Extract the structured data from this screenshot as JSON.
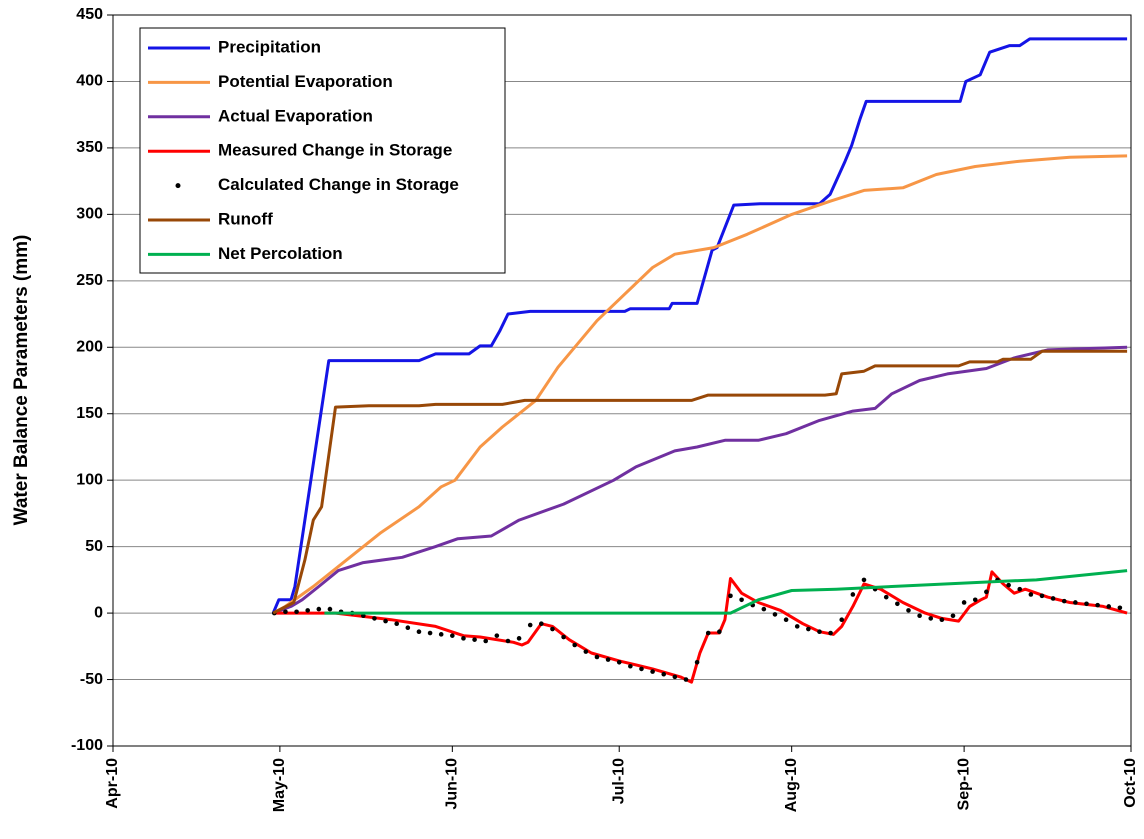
{
  "chart_data": {
    "type": "line",
    "y_label": "Water Balance Parameters (mm)",
    "xlim": [
      0,
      183
    ],
    "xticks": [
      {
        "value": 0,
        "label": "Apr-10"
      },
      {
        "value": 30,
        "label": "May-10"
      },
      {
        "value": 61,
        "label": "Jun-10"
      },
      {
        "value": 91,
        "label": "Jul-10"
      },
      {
        "value": 122,
        "label": "Aug-10"
      },
      {
        "value": 153,
        "label": "Sep-10"
      },
      {
        "value": 183,
        "label": "Oct-10"
      }
    ],
    "ylim": [
      -100,
      450
    ],
    "yticks": [
      -100,
      -50,
      0,
      50,
      100,
      150,
      200,
      250,
      300,
      350,
      400,
      450
    ],
    "grid": true,
    "legend": "upper-left",
    "series": [
      {
        "name": "Precipitation",
        "color": "#1414e6",
        "mode": "line",
        "x": [
          28.8,
          29.8,
          32,
          32.7,
          38.8,
          55,
          58,
          64,
          66,
          68,
          69.5,
          71,
          75,
          92,
          93,
          100,
          100.5,
          105,
          107.7,
          108.6,
          111.6,
          116.3,
          127,
          128.9,
          131.6,
          132.8,
          134.3,
          135.4,
          152.3,
          153.3,
          155.9,
          157.6,
          161.2,
          163,
          164.8,
          182.3
        ],
        "values": [
          0,
          10,
          10,
          20,
          190,
          190,
          195,
          195,
          201,
          201,
          212,
          225,
          227,
          227,
          229,
          229,
          233,
          233,
          273,
          275,
          307,
          308,
          308,
          315,
          340,
          352,
          372,
          385,
          385,
          400,
          405,
          422,
          427,
          427,
          432,
          432
        ]
      },
      {
        "name": "Potential Evaporation",
        "color": "#f79646",
        "mode": "line",
        "x": [
          28.8,
          31,
          36,
          40.5,
          48,
          55,
          59,
          61.5,
          66,
          70,
          76,
          80,
          87,
          92,
          97,
          101,
          108,
          114,
          122,
          129,
          135,
          142,
          148,
          155,
          163,
          172,
          182.3
        ],
        "values": [
          0,
          5,
          20,
          35,
          60,
          80,
          95,
          100,
          125,
          140,
          160,
          185,
          220,
          240,
          260,
          270,
          275,
          285,
          300,
          310,
          318,
          320,
          330,
          336,
          340,
          343,
          344
        ]
      },
      {
        "name": "Actual Evaporation",
        "color": "#7030a0",
        "mode": "line",
        "x": [
          28.8,
          32,
          34,
          37,
          40.5,
          45,
          52,
          58,
          62,
          68,
          73,
          81,
          90,
          94,
          101,
          105,
          110,
          116,
          121,
          127,
          133,
          137,
          140,
          145,
          150,
          157,
          162,
          168,
          182.3
        ],
        "values": [
          0,
          5,
          10,
          20,
          32,
          38,
          42,
          50,
          56,
          58,
          70,
          82,
          100,
          110,
          122,
          125,
          130,
          130,
          135,
          145,
          152,
          154,
          165,
          175,
          180,
          184,
          192,
          198,
          200
        ]
      },
      {
        "name": "Measured Change in Storage",
        "color": "#ff0000",
        "mode": "line",
        "x": [
          28.8,
          40,
          50,
          58,
          63,
          66,
          72,
          73.5,
          74.6,
          77,
          79,
          82,
          86,
          91,
          97,
          102,
          104,
          105.5,
          107,
          109,
          110,
          111,
          113,
          116,
          120,
          124,
          127,
          129.5,
          131,
          133,
          135,
          138,
          142,
          146,
          149,
          152,
          154,
          156,
          157,
          158,
          160,
          162,
          164,
          168,
          172,
          178,
          182.3
        ],
        "values": [
          0,
          0,
          -5,
          -10,
          -17,
          -18,
          -22,
          -24,
          -22,
          -8,
          -10,
          -20,
          -30,
          -36,
          -42,
          -48,
          -52,
          -30,
          -15,
          -15,
          -5,
          26,
          15,
          8,
          2,
          -8,
          -14,
          -16,
          -10,
          5,
          22,
          18,
          8,
          0,
          -4,
          -6,
          5,
          10,
          12,
          31,
          22,
          15,
          18,
          12,
          8,
          5,
          0
        ]
      },
      {
        "name": "Calculated Change in Storage",
        "color": "#000000",
        "mode": "markers",
        "x": [
          29,
          31,
          33,
          35,
          37,
          39,
          41,
          43,
          45,
          47,
          49,
          51,
          53,
          55,
          57,
          59,
          61,
          63,
          65,
          67,
          69,
          71,
          73,
          75,
          77,
          79,
          81,
          83,
          85,
          87,
          89,
          91,
          93,
          95,
          97,
          99,
          101,
          103,
          105,
          107,
          109,
          111,
          113,
          115,
          117,
          119,
          121,
          123,
          125,
          127,
          129,
          131,
          133,
          135,
          137,
          139,
          141,
          143,
          145,
          147,
          149,
          151,
          153,
          155,
          157,
          159,
          161,
          163,
          165,
          167,
          169,
          171,
          173,
          175,
          177,
          179,
          181
        ],
        "values": [
          0,
          1,
          1,
          2,
          3,
          3,
          1,
          0,
          -2,
          -4,
          -6,
          -8,
          -11,
          -14,
          -15,
          -16,
          -17,
          -19,
          -20,
          -21,
          -17,
          -21,
          -19,
          -9,
          -8,
          -12,
          -18,
          -24,
          -29,
          -33,
          -35,
          -37,
          -40,
          -42,
          -44,
          -46,
          -48,
          -50,
          -37,
          -15,
          -14,
          13,
          10,
          6,
          3,
          -1,
          -5,
          -10,
          -12,
          -14,
          -15,
          -5,
          14,
          25,
          18,
          12,
          7,
          2,
          -2,
          -4,
          -5,
          -2,
          8,
          10,
          16,
          25,
          21,
          18,
          14,
          13,
          11,
          9,
          8,
          7,
          6,
          5,
          4
        ]
      },
      {
        "name": "Runoff",
        "color": "#984807",
        "mode": "line",
        "x": [
          28.8,
          32.5,
          34.5,
          36,
          37.5,
          40,
          46,
          55,
          58,
          70,
          74,
          104,
          107,
          128,
          130,
          131,
          135,
          137,
          152,
          154,
          159,
          160,
          165,
          167,
          182.3
        ],
        "values": [
          0,
          8,
          40,
          70,
          80,
          155,
          156,
          156,
          157,
          157,
          160,
          160,
          164,
          164,
          165,
          180,
          182,
          186,
          186,
          189,
          189,
          191,
          191,
          197,
          197
        ]
      },
      {
        "name": "Net Percolation",
        "color": "#00b050",
        "mode": "line",
        "x": [
          38,
          111,
          116,
          122,
          130,
          140,
          150,
          160,
          166,
          182.3
        ],
        "values": [
          0,
          0,
          10,
          17,
          18,
          20,
          22,
          24,
          25,
          32
        ]
      }
    ]
  }
}
